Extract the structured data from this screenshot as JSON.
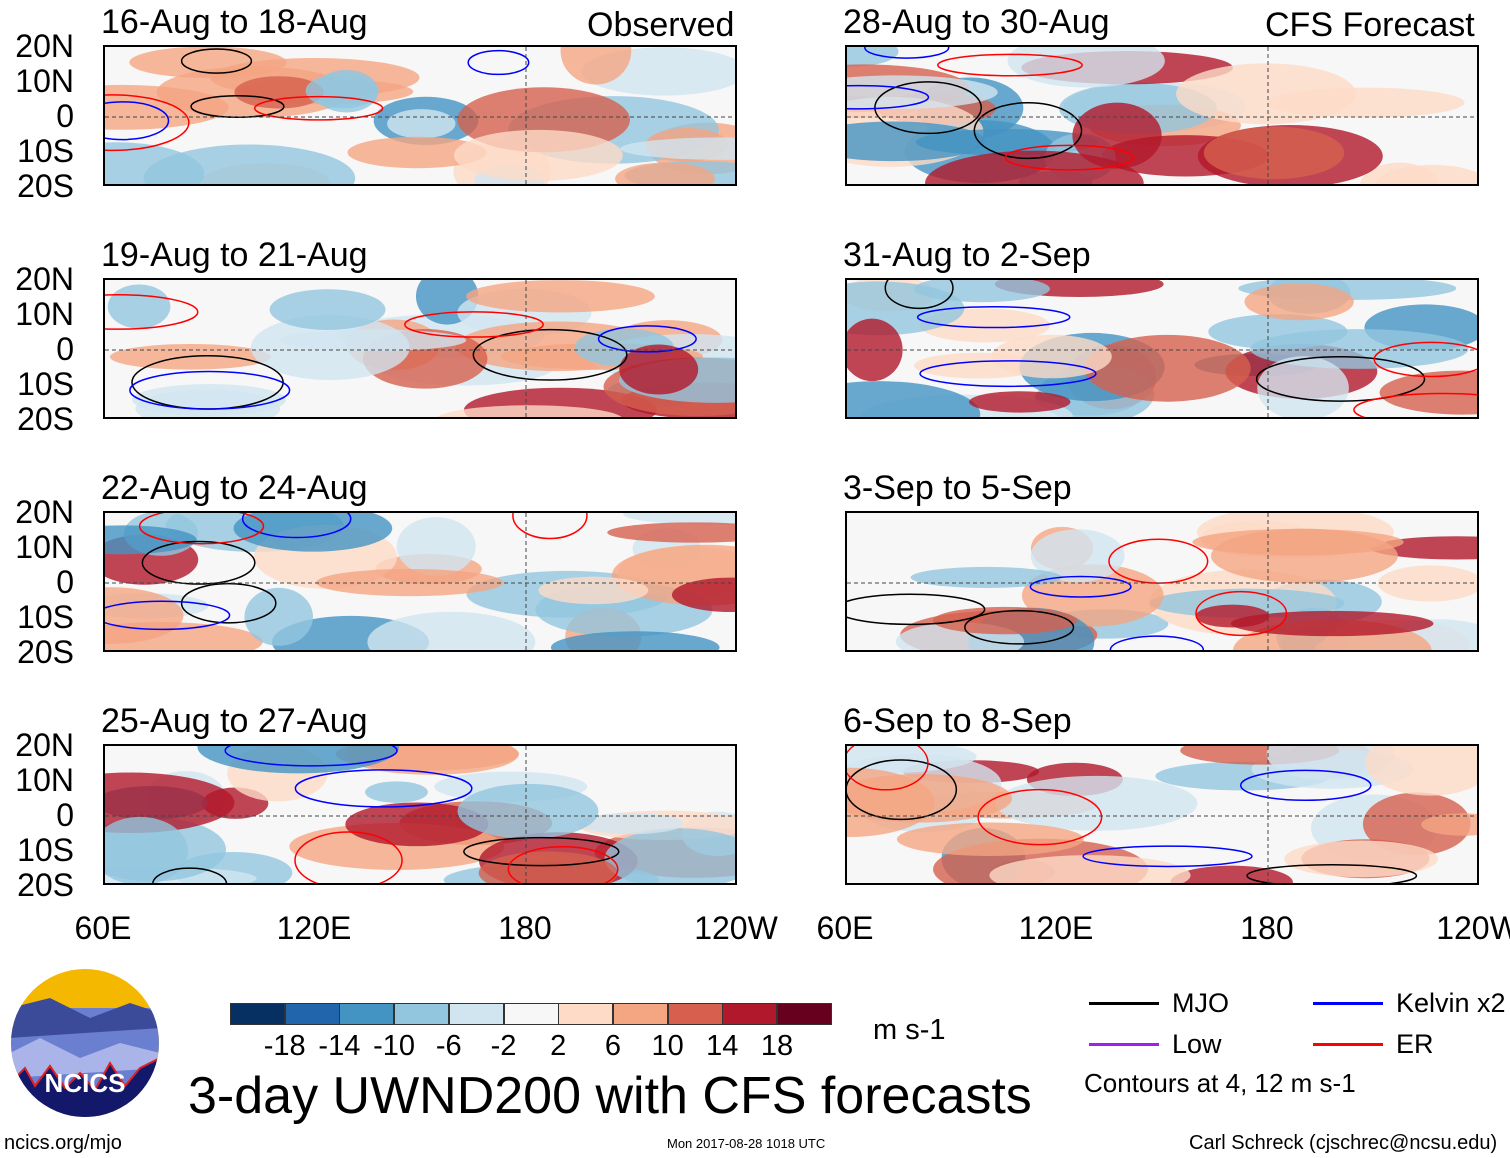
{
  "header": {
    "observed_label": "Observed",
    "forecast_label": "CFS Forecast"
  },
  "observed_panels": [
    {
      "title": "16-Aug to 18-Aug"
    },
    {
      "title": "19-Aug to 21-Aug"
    },
    {
      "title": "22-Aug to 24-Aug"
    },
    {
      "title": "25-Aug to 27-Aug"
    }
  ],
  "forecast_panels": [
    {
      "title": "28-Aug to 30-Aug"
    },
    {
      "title": "31-Aug to 2-Sep"
    },
    {
      "title": "3-Sep to 5-Sep"
    },
    {
      "title": "6-Sep to 8-Sep"
    }
  ],
  "lat_ticks": [
    "20N",
    "10N",
    "0",
    "10S",
    "20S"
  ],
  "lon_ticks": [
    "60E",
    "120E",
    "180",
    "120W"
  ],
  "colorbar": {
    "colors": [
      "#053061",
      "#2166ac",
      "#4393c3",
      "#92c5de",
      "#d1e5f0",
      "#f7f7f7",
      "#fddbc7",
      "#f4a582",
      "#d6604d",
      "#b2182b",
      "#67001f"
    ],
    "labels": [
      "-18",
      "-14",
      "-10",
      "-6",
      "-2",
      "2",
      "6",
      "10",
      "14",
      "18"
    ],
    "units": "m s-1"
  },
  "legend": {
    "items": [
      {
        "label": "MJO",
        "color": "#000000"
      },
      {
        "label": "Kelvin x2",
        "color": "#0000ff"
      },
      {
        "label": "Low",
        "color": "#a020f0"
      },
      {
        "label": "ER",
        "color": "#ff0000"
      }
    ],
    "note": "Contours at 4, 12 m s-1"
  },
  "title": "3-day UWND200 with CFS forecasts",
  "logo_text": "NCICS",
  "footer": {
    "left": "ncics.org/mjo",
    "center": "Mon 2017-08-28 1018 UTC",
    "right": "Carl Schreck (cjschrec@ncsu.edu)"
  }
}
